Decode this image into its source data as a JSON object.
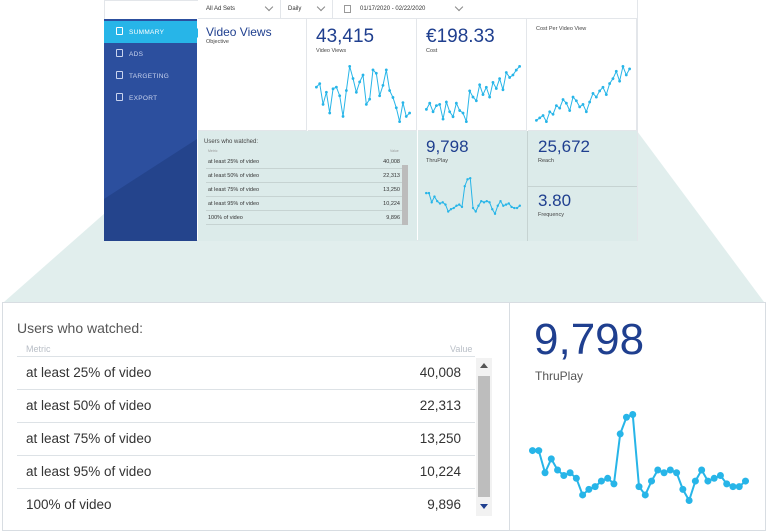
{
  "toolbar": {
    "adsets": "All Ad Sets",
    "granularity": "Daily",
    "daterange": "01/17/2020 - 02/22/2020"
  },
  "sidebar": {
    "items": [
      {
        "label": "SUMMARY",
        "icon": "summary-icon",
        "active": true
      },
      {
        "label": "ADS",
        "icon": "ads-icon",
        "active": false
      },
      {
        "label": "TARGETING",
        "icon": "targeting-icon",
        "active": false
      },
      {
        "label": "EXPORT",
        "icon": "export-icon",
        "active": false
      }
    ]
  },
  "cards": {
    "objective": {
      "title": "Video Views",
      "label": "Objective"
    },
    "video_views": {
      "value": "43,415",
      "label": "Video Views"
    },
    "cost": {
      "value": "€198.33",
      "label": "Cost"
    },
    "cpv": {
      "label": "Cost Per Video View"
    },
    "thruplay": {
      "value": "9,798",
      "label": "ThruPlay"
    },
    "reach": {
      "value": "25,672",
      "label": "Reach"
    },
    "frequency": {
      "value": "3.80",
      "label": "Frequency"
    }
  },
  "watched_table": {
    "title": "Users who watched:",
    "columns": [
      "Metric",
      "Value"
    ],
    "rows": [
      {
        "metric": "at least 25% of video",
        "value": "40,008"
      },
      {
        "metric": "at least 50% of video",
        "value": "22,313"
      },
      {
        "metric": "at least 75% of video",
        "value": "13,250"
      },
      {
        "metric": "at least 95% of video",
        "value": "10,224"
      },
      {
        "metric": "100% of video",
        "value": "9,896"
      }
    ]
  },
  "colors": {
    "sidebar": "#2c4f9e",
    "accent": "#27b5e8",
    "number": "#1f3f8f",
    "highlight": "#dcebea"
  },
  "chart_data": [
    {
      "type": "line",
      "name": "video-views-sparkline",
      "values": [
        50,
        52,
        40,
        47,
        35,
        49,
        50,
        45,
        33,
        48,
        62,
        55,
        47,
        53,
        57,
        40,
        43,
        60,
        58,
        45,
        51,
        60,
        48,
        44,
        38,
        30,
        41,
        33,
        35
      ]
    },
    {
      "type": "line",
      "name": "cost-sparkline",
      "values": [
        40,
        45,
        38,
        43,
        44,
        32,
        46,
        38,
        34,
        45,
        39,
        37,
        30,
        55,
        50,
        47,
        60,
        52,
        58,
        50,
        62,
        57,
        65,
        56,
        70,
        66,
        68,
        72,
        75
      ]
    },
    {
      "type": "line",
      "name": "cpv-sparkline",
      "values": [
        28,
        30,
        32,
        27,
        35,
        33,
        40,
        38,
        45,
        42,
        36,
        47,
        44,
        39,
        41,
        35,
        43,
        50,
        47,
        52,
        55,
        49,
        58,
        62,
        68,
        60,
        72,
        65,
        70
      ]
    },
    {
      "type": "line",
      "name": "thruplay-sparkline",
      "values": [
        44,
        44,
        36,
        41,
        37,
        35,
        36,
        34,
        28,
        30,
        31,
        33,
        34,
        32,
        50,
        56,
        57,
        31,
        28,
        33,
        37,
        36,
        37,
        36,
        30,
        26,
        33,
        37,
        33,
        34,
        35,
        32,
        31,
        31,
        33
      ]
    }
  ]
}
